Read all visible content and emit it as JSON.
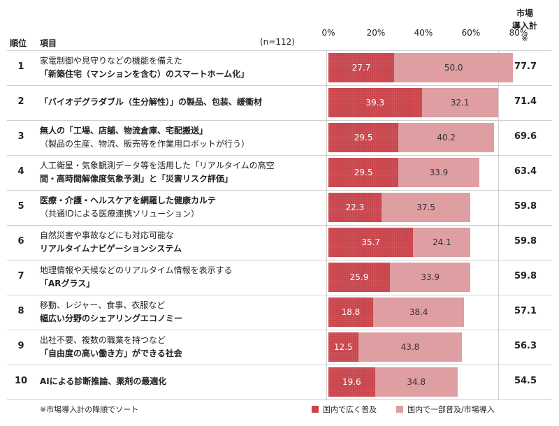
{
  "header": {
    "rank": "順位",
    "item": "項目",
    "n": "(n=112)",
    "market_line1": "市場",
    "market_line2": "導入計",
    "market_line3": "※"
  },
  "footnote": "※市場導入計の降順でソート",
  "legend": [
    {
      "label": "国内で広く普及",
      "color": "#c8434a"
    },
    {
      "label": "国内で一部普及/市場導入",
      "color": "#df9ea2"
    }
  ],
  "chart_data": {
    "type": "bar",
    "orientation": "horizontal",
    "stacked": true,
    "xlim": [
      0,
      80
    ],
    "ticks": [
      "0%",
      "20%",
      "40%",
      "60%",
      "80%"
    ],
    "series": [
      {
        "name": "国内で広く普及",
        "values": [
          27.7,
          39.3,
          29.5,
          29.5,
          22.3,
          35.7,
          25.9,
          18.8,
          12.5,
          19.6
        ]
      },
      {
        "name": "国内で一部普及/市場導入",
        "values": [
          50.0,
          32.1,
          40.2,
          33.9,
          37.5,
          24.1,
          33.9,
          38.4,
          43.8,
          34.8
        ]
      }
    ],
    "market_total": [
      77.7,
      71.4,
      69.6,
      63.4,
      59.8,
      59.8,
      59.8,
      57.1,
      56.3,
      54.5
    ]
  },
  "rows": [
    {
      "rank": "1",
      "l1": "家電制御や見守りなどの機能を備えた",
      "l2": "「新築住宅（マンションを含む）のスマートホーム化」",
      "a": "27.7",
      "b": "50.0",
      "total": "77.7"
    },
    {
      "rank": "2",
      "l1": "「バイオデグラダブル（生分解性）」の製品、包装、緩衝材",
      "l2": "",
      "a": "39.3",
      "b": "32.1",
      "total": "71.4"
    },
    {
      "rank": "3",
      "l1": "無人の「工場、店舗、物流倉庫、宅配搬送」",
      "l2": "（製品の生産、物流、販売等を作業用ロボットが行う）",
      "a": "29.5",
      "b": "40.2",
      "total": "69.6"
    },
    {
      "rank": "4",
      "l1": "人工衛星・気象観測データ等を活用した「リアルタイムの高空",
      "l2": "間・高時間解像度気象予測」と「災害リスク評価」",
      "a": "29.5",
      "b": "33.9",
      "total": "63.4"
    },
    {
      "rank": "5",
      "l1": "医療・介護・ヘルスケアを網羅した健康カルテ",
      "l2": "（共通IDによる医療連携ソリューション）",
      "a": "22.3",
      "b": "37.5",
      "total": "59.8"
    },
    {
      "rank": "6",
      "l1": "自然災害や事故などにも対応可能な",
      "l2": "リアルタイムナビゲーションシステム",
      "a": "35.7",
      "b": "24.1",
      "total": "59.8"
    },
    {
      "rank": "7",
      "l1": "地理情報や天候などのリアルタイム情報を表示する",
      "l2": "「ARグラス」",
      "a": "25.9",
      "b": "33.9",
      "total": "59.8"
    },
    {
      "rank": "8",
      "l1": "移動、レジャー、食事、衣服など",
      "l2": "幅広い分野のシェアリングエコノミー",
      "a": "18.8",
      "b": "38.4",
      "total": "57.1"
    },
    {
      "rank": "9",
      "l1": "出社不要、複数の職業を持つなど",
      "l2": "「自由度の高い働き方」ができる社会",
      "a": "12.5",
      "b": "43.8",
      "total": "56.3"
    },
    {
      "rank": "10",
      "l1": "AIによる診断推論、薬剤の最適化",
      "l2": "",
      "a": "19.6",
      "b": "34.8",
      "total": "54.5"
    }
  ]
}
